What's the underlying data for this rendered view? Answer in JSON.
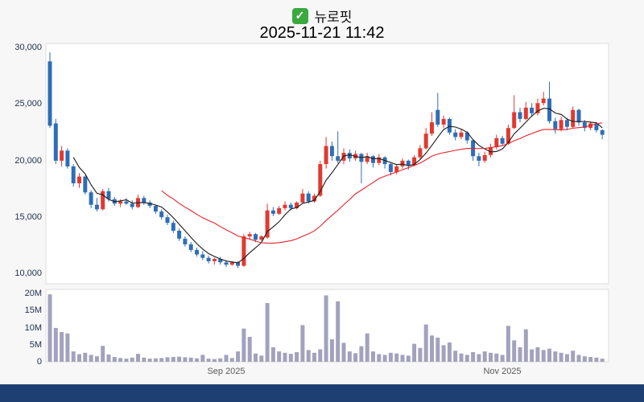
{
  "header": {
    "stock_name": "뉴로핏",
    "datetime": "2025-11-21 11:42",
    "check_glyph": "✓"
  },
  "axis": {
    "price_ticks": [
      "30,000",
      "25,000",
      "20,000",
      "15,000",
      "10,000"
    ],
    "volume_ticks": [
      "20M",
      "15M",
      "10M",
      "5M",
      "0"
    ],
    "x_labels": [
      {
        "label": "Sep 2025",
        "index": 30
      },
      {
        "label": "Nov 2025",
        "index": 77
      }
    ]
  },
  "colors": {
    "up_candle": "#e03a30",
    "down_candle": "#2f6eb6",
    "ma_short": "#1a1a1a",
    "ma_long": "#e8222a",
    "volume_bar": "#a2a2bd",
    "check_icon_green": "#3aa93f",
    "footer_bar": "#1d3f72",
    "plot_background": "#ffffff",
    "page_background": "#f7f7f8"
  },
  "chart_data": {
    "type": "candlestick+volume-bar",
    "title": "뉴로핏",
    "subtitle": "2025-11-21 11:42",
    "price_range": [
      10000,
      30000
    ],
    "volume_range_millions": [
      0,
      20
    ],
    "volume_unit": "M",
    "ma_short_period": 5,
    "ma_long_period": 20,
    "fields": [
      "open",
      "high",
      "low",
      "close",
      "volume_millions"
    ],
    "candles": [
      [
        28700,
        29500,
        22800,
        23000,
        19.5
      ],
      [
        23200,
        23600,
        19600,
        19900,
        9.8
      ],
      [
        19900,
        21200,
        19400,
        20800,
        8.6
      ],
      [
        20800,
        21000,
        19200,
        19400,
        8.2
      ],
      [
        19400,
        19600,
        17600,
        17900,
        3.0
      ],
      [
        17900,
        18800,
        17500,
        18500,
        2.2
      ],
      [
        18500,
        18600,
        16900,
        17100,
        2.6
      ],
      [
        17100,
        17300,
        15700,
        16000,
        2.0
      ],
      [
        16000,
        16600,
        15400,
        15600,
        1.6
      ],
      [
        15600,
        17400,
        15500,
        17200,
        4.6
      ],
      [
        17200,
        17500,
        16300,
        16500,
        2.1
      ],
      [
        16500,
        16700,
        15900,
        16100,
        1.4
      ],
      [
        16100,
        16500,
        15800,
        16300,
        1.1
      ],
      [
        16300,
        16600,
        16000,
        16100,
        0.9
      ],
      [
        16100,
        16400,
        15600,
        15800,
        1.2
      ],
      [
        15800,
        16900,
        15700,
        16600,
        2.3
      ],
      [
        16600,
        16800,
        16000,
        16200,
        1.2
      ],
      [
        16200,
        16400,
        15700,
        15900,
        0.9
      ],
      [
        15900,
        16000,
        15200,
        15400,
        1.0
      ],
      [
        15400,
        15600,
        14700,
        14900,
        1.1
      ],
      [
        14900,
        15100,
        14200,
        14400,
        1.3
      ],
      [
        14400,
        14600,
        13500,
        13700,
        1.4
      ],
      [
        13700,
        13900,
        12800,
        13000,
        1.5
      ],
      [
        13000,
        13200,
        12300,
        12500,
        1.3
      ],
      [
        12500,
        12700,
        11800,
        12000,
        1.2
      ],
      [
        12000,
        12200,
        11400,
        11600,
        1.0
      ],
      [
        11600,
        11900,
        11100,
        11300,
        2.0
      ],
      [
        11300,
        11500,
        10800,
        11000,
        0.9
      ],
      [
        11000,
        11300,
        10700,
        11200,
        0.8
      ],
      [
        11200,
        11400,
        10700,
        10900,
        1.0
      ],
      [
        10900,
        11100,
        10500,
        10700,
        2.0
      ],
      [
        10700,
        11000,
        10600,
        10900,
        1.1
      ],
      [
        10900,
        11000,
        10400,
        10600,
        3.0
      ],
      [
        10600,
        13400,
        10500,
        13200,
        9.6
      ],
      [
        13200,
        13600,
        12900,
        13400,
        7.2
      ],
      [
        13400,
        13500,
        12700,
        12900,
        2.4
      ],
      [
        12900,
        13300,
        12800,
        13200,
        1.8
      ],
      [
        13100,
        16100,
        13000,
        15500,
        17.0
      ],
      [
        15500,
        15800,
        15000,
        15200,
        4.2
      ],
      [
        15200,
        15900,
        15100,
        15700,
        3.0
      ],
      [
        15700,
        16300,
        15500,
        16000,
        2.6
      ],
      [
        16000,
        16200,
        15500,
        15700,
        2.3
      ],
      [
        15700,
        16300,
        15600,
        16200,
        2.8
      ],
      [
        16200,
        17400,
        16100,
        17000,
        10.6
      ],
      [
        17000,
        17200,
        16100,
        16300,
        3.4
      ],
      [
        16300,
        17000,
        16200,
        16800,
        2.6
      ],
      [
        16800,
        19900,
        16700,
        19600,
        3.6
      ],
      [
        19600,
        22000,
        19200,
        21200,
        19.2
      ],
      [
        21200,
        21600,
        19900,
        20300,
        6.5
      ],
      [
        20300,
        22500,
        19700,
        19900,
        17.5
      ],
      [
        19900,
        21000,
        19600,
        20600,
        5.5
      ],
      [
        20600,
        20900,
        19800,
        20100,
        3.0
      ],
      [
        20100,
        20800,
        19900,
        20500,
        2.5
      ],
      [
        20500,
        20600,
        17900,
        19800,
        4.5
      ],
      [
        19800,
        20600,
        19600,
        20300,
        8.2
      ],
      [
        20300,
        20400,
        19300,
        19700,
        3.0
      ],
      [
        19700,
        20500,
        19500,
        20200,
        2.2
      ],
      [
        20200,
        20300,
        19200,
        19600,
        2.0
      ],
      [
        19600,
        19700,
        18600,
        18900,
        2.6
      ],
      [
        18900,
        19600,
        18700,
        19400,
        2.4
      ],
      [
        19400,
        20100,
        19200,
        19900,
        2.0
      ],
      [
        19900,
        20000,
        19100,
        19500,
        1.8
      ],
      [
        19500,
        20400,
        19400,
        20200,
        5.2
      ],
      [
        20200,
        21300,
        20000,
        21000,
        4.0
      ],
      [
        21000,
        22800,
        20900,
        22300,
        10.8
      ],
      [
        22300,
        24200,
        22100,
        23300,
        7.6
      ],
      [
        24400,
        25900,
        22900,
        23100,
        7.0
      ],
      [
        23100,
        23900,
        22800,
        23600,
        4.8
      ],
      [
        23600,
        23700,
        22200,
        22400,
        5.6
      ],
      [
        22400,
        22700,
        21700,
        22000,
        3.2
      ],
      [
        22000,
        22700,
        21800,
        22400,
        2.4
      ],
      [
        22400,
        22500,
        21400,
        21700,
        2.0
      ],
      [
        21700,
        21800,
        19900,
        20300,
        2.8
      ],
      [
        20300,
        20600,
        19400,
        19900,
        2.2
      ],
      [
        19900,
        20700,
        19700,
        20400,
        3.0
      ],
      [
        20400,
        21400,
        20200,
        21100,
        2.6
      ],
      [
        21100,
        22200,
        20900,
        21900,
        2.4
      ],
      [
        21900,
        22100,
        21200,
        21400,
        2.0
      ],
      [
        21400,
        23100,
        21300,
        22800,
        10.4
      ],
      [
        22800,
        25700,
        22700,
        24200,
        6.2
      ],
      [
        24200,
        24600,
        23300,
        23600,
        4.2
      ],
      [
        23600,
        25100,
        23500,
        24600,
        9.4
      ],
      [
        24600,
        25000,
        23800,
        24100,
        3.6
      ],
      [
        24100,
        25400,
        23900,
        25000,
        4.2
      ],
      [
        25000,
        26000,
        24800,
        25400,
        3.4
      ],
      [
        25400,
        26900,
        23200,
        23400,
        3.8
      ],
      [
        23400,
        23700,
        22300,
        22700,
        3.0
      ],
      [
        22700,
        23800,
        22500,
        23500,
        2.6
      ],
      [
        23500,
        23700,
        22600,
        22900,
        2.2
      ],
      [
        22900,
        24700,
        22800,
        24400,
        3.2
      ],
      [
        24400,
        24500,
        23000,
        23300,
        2.0
      ],
      [
        23300,
        23500,
        22500,
        22800,
        1.6
      ],
      [
        22800,
        23400,
        22600,
        23200,
        1.4
      ],
      [
        23200,
        23300,
        22400,
        22600,
        1.2
      ],
      [
        22600,
        22700,
        21800,
        22200,
        0.9
      ]
    ]
  }
}
